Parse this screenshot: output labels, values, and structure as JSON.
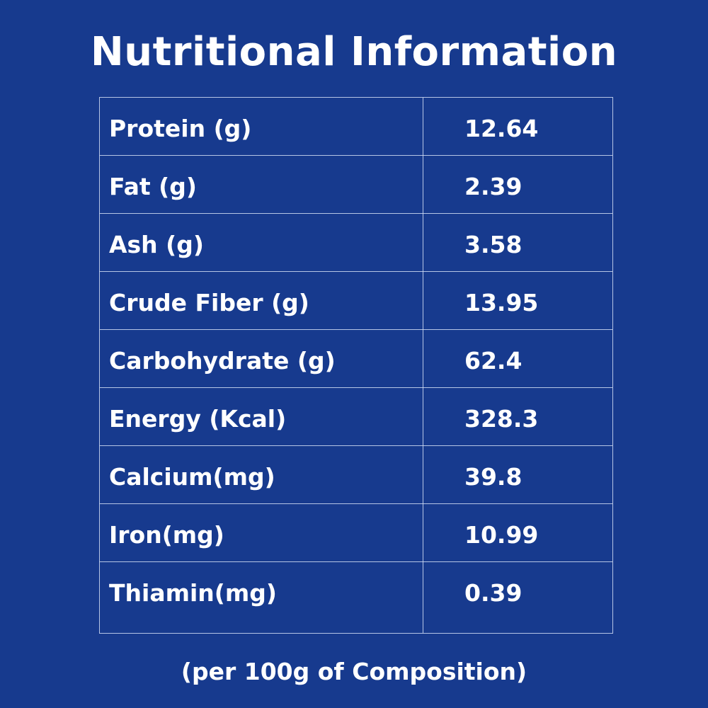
{
  "title": "Nutritional Information",
  "rows": [
    {
      "label": "Protein (g)",
      "value": "12.64"
    },
    {
      "label": "Fat (g)",
      "value": "2.39"
    },
    {
      "label": "Ash (g)",
      "value": "3.58"
    },
    {
      "label": "Crude Fiber (g)",
      "value": "13.95"
    },
    {
      "label": "Carbohydrate (g)",
      "value": "62.4"
    },
    {
      "label": "Energy (Kcal)",
      "value": "328.3"
    },
    {
      "label": "Calcium(mg)",
      "value": "39.8"
    },
    {
      "label": "Iron(mg)",
      "value": "10.99"
    },
    {
      "label": "Thiamin(mg)",
      "value": "0.39"
    }
  ],
  "footnote": "(per 100g of Composition)",
  "colors": {
    "background": "#173a8e",
    "text": "#ffffff"
  }
}
